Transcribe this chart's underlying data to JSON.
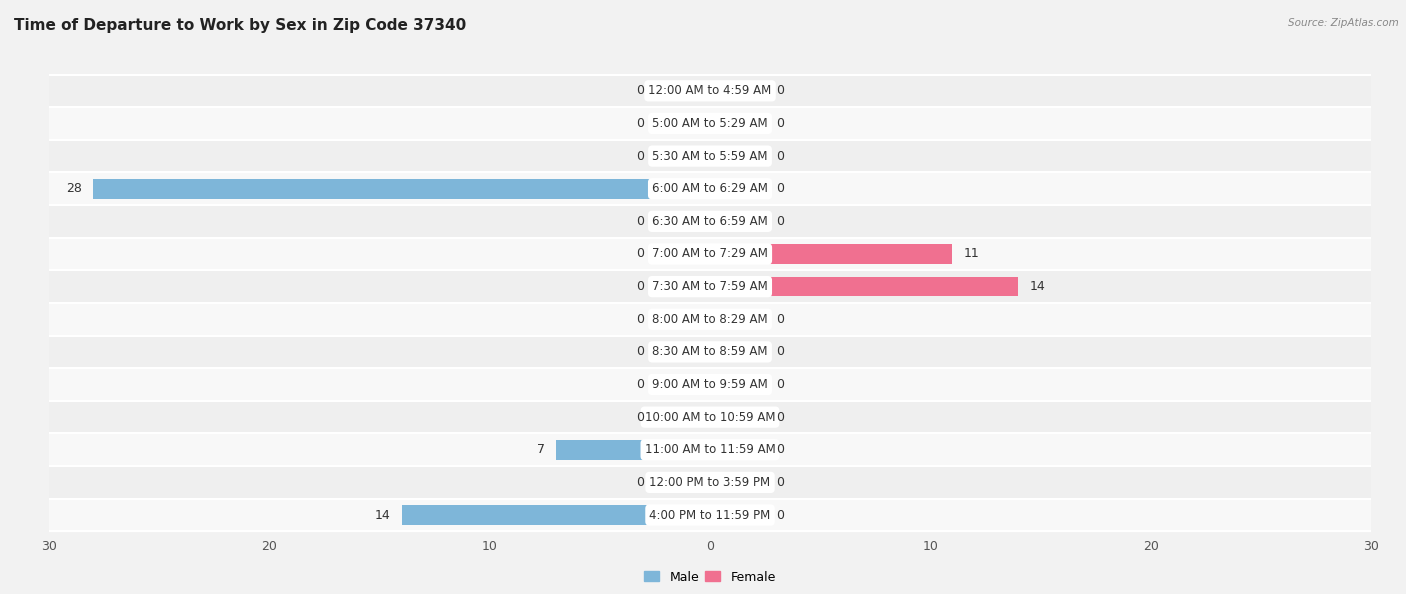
{
  "title": "Time of Departure to Work by Sex in Zip Code 37340",
  "source": "Source: ZipAtlas.com",
  "categories": [
    "12:00 AM to 4:59 AM",
    "5:00 AM to 5:29 AM",
    "5:30 AM to 5:59 AM",
    "6:00 AM to 6:29 AM",
    "6:30 AM to 6:59 AM",
    "7:00 AM to 7:29 AM",
    "7:30 AM to 7:59 AM",
    "8:00 AM to 8:29 AM",
    "8:30 AM to 8:59 AM",
    "9:00 AM to 9:59 AM",
    "10:00 AM to 10:59 AM",
    "11:00 AM to 11:59 AM",
    "12:00 PM to 3:59 PM",
    "4:00 PM to 11:59 PM"
  ],
  "male": [
    0,
    0,
    0,
    28,
    0,
    0,
    0,
    0,
    0,
    0,
    0,
    7,
    0,
    14
  ],
  "female": [
    0,
    0,
    0,
    0,
    0,
    11,
    14,
    0,
    0,
    0,
    0,
    0,
    0,
    0
  ],
  "male_color": "#7EB6D9",
  "female_color": "#F07090",
  "male_color_light": "#B8D8ED",
  "female_color_light": "#F5B8C8",
  "male_label": "Male",
  "female_label": "Female",
  "xlim": 30,
  "row_colors": [
    "#efefef",
    "#f8f8f8"
  ],
  "title_fontsize": 11,
  "label_fontsize": 8.5,
  "axis_fontsize": 9,
  "value_fontsize": 9
}
